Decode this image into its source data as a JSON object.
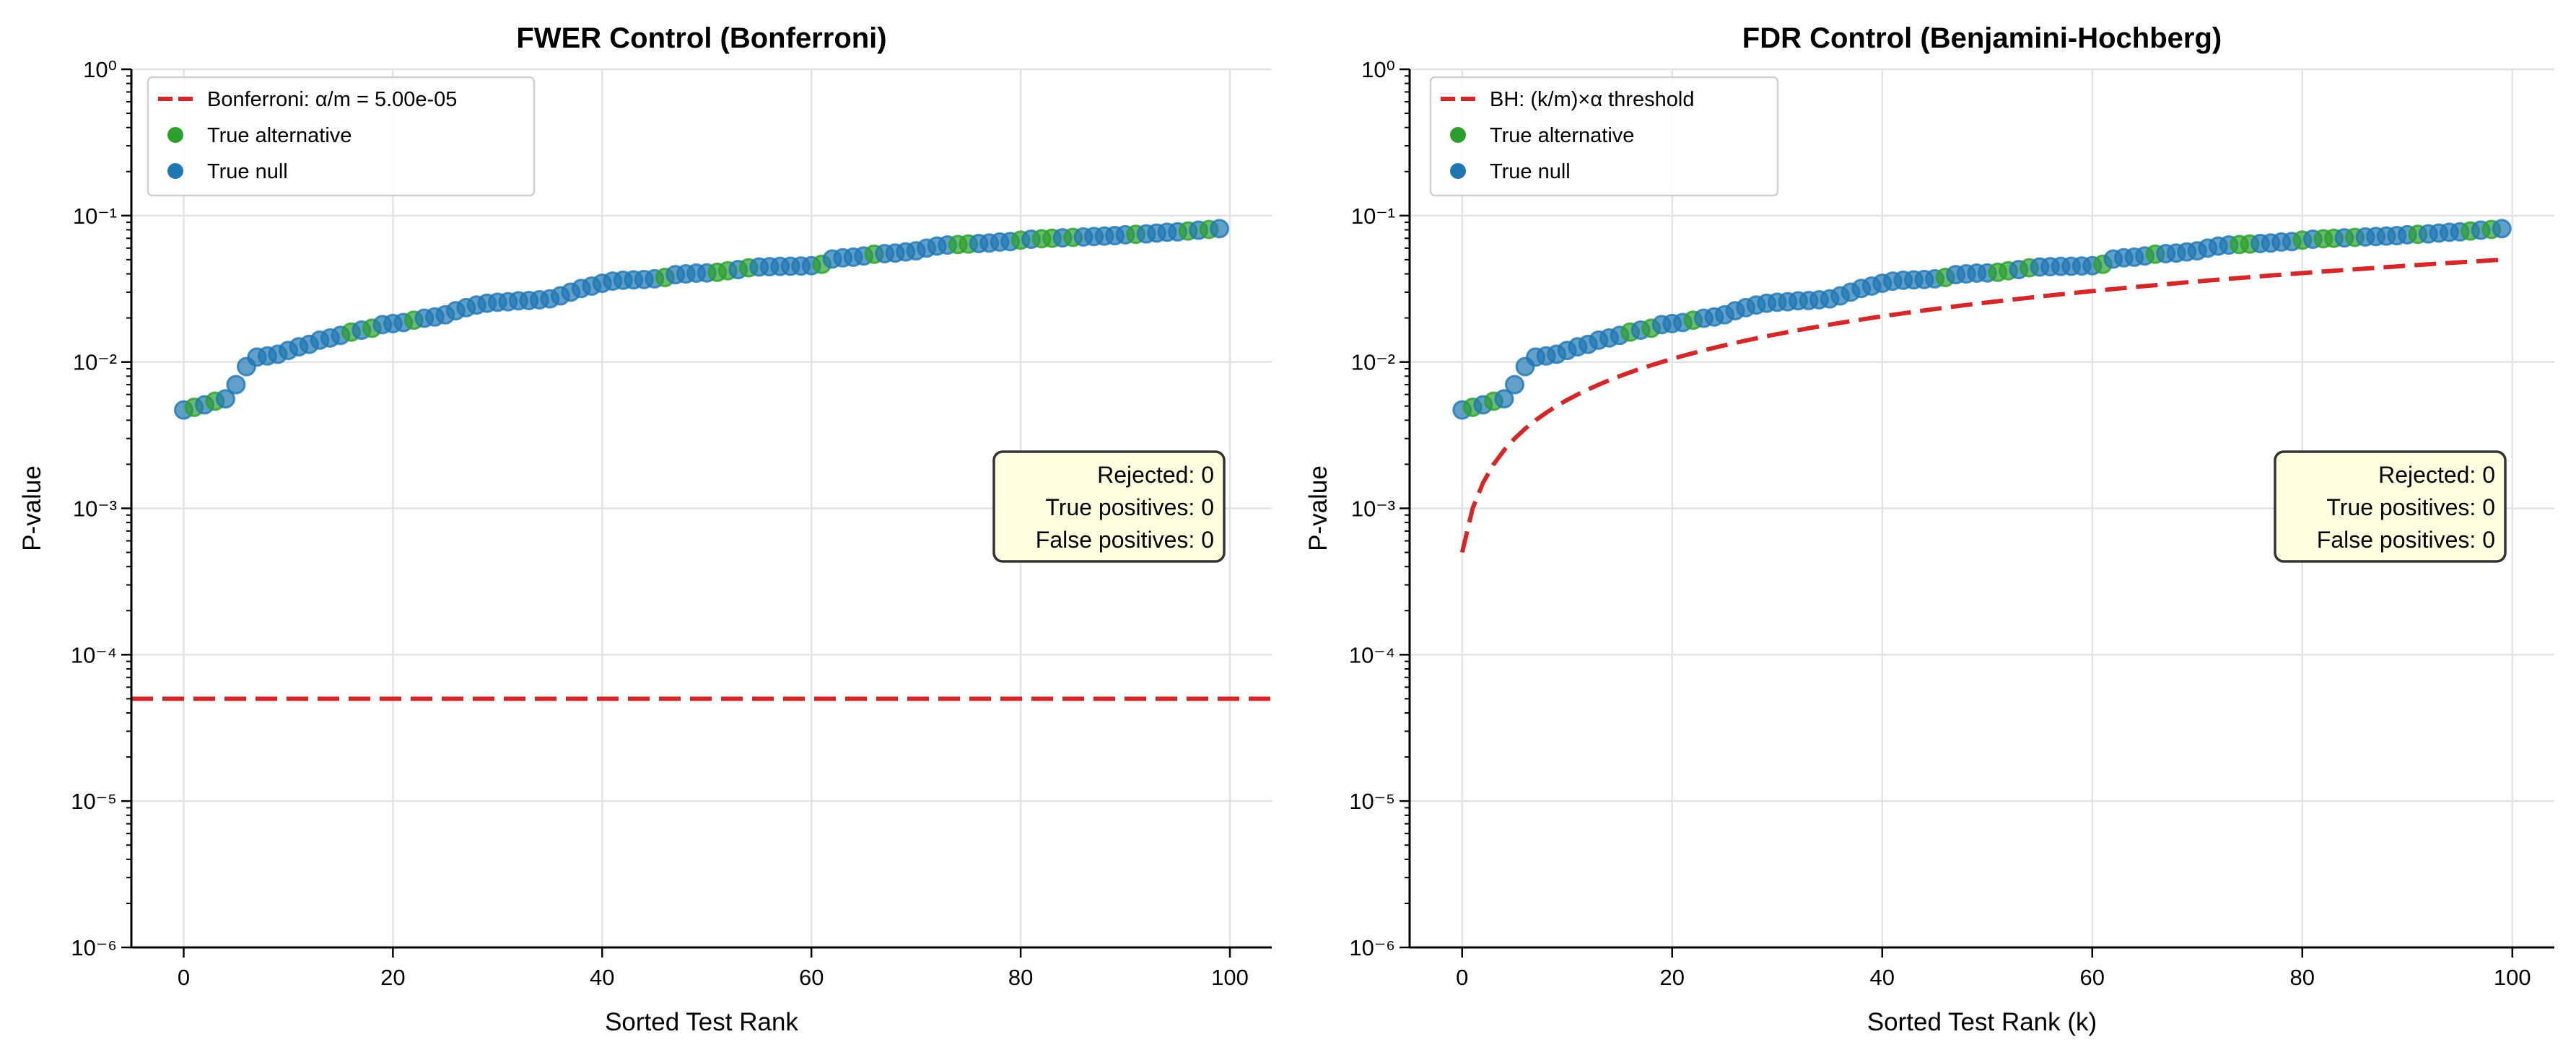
{
  "chart_data": {
    "type": "scatter",
    "m": 100,
    "alpha": 0.05,
    "ranks_start": 0,
    "p_values": [
      0.0047,
      0.0049,
      0.0051,
      0.0054,
      0.0056,
      0.007,
      0.0093,
      0.0108,
      0.011,
      0.0113,
      0.012,
      0.0127,
      0.0132,
      0.0141,
      0.0146,
      0.0152,
      0.016,
      0.0165,
      0.017,
      0.018,
      0.0183,
      0.0186,
      0.0193,
      0.0199,
      0.0203,
      0.021,
      0.0224,
      0.0235,
      0.0245,
      0.0252,
      0.0256,
      0.0258,
      0.0262,
      0.0263,
      0.0266,
      0.027,
      0.0283,
      0.03,
      0.0318,
      0.033,
      0.0345,
      0.0357,
      0.0362,
      0.0364,
      0.0366,
      0.037,
      0.0378,
      0.0395,
      0.04,
      0.0405,
      0.0406,
      0.041,
      0.042,
      0.0428,
      0.044,
      0.0446,
      0.0448,
      0.045,
      0.0451,
      0.0453,
      0.0455,
      0.0465,
      0.0505,
      0.0515,
      0.052,
      0.053,
      0.0545,
      0.055,
      0.0555,
      0.0565,
      0.0575,
      0.06,
      0.062,
      0.063,
      0.0635,
      0.064,
      0.0645,
      0.065,
      0.066,
      0.0665,
      0.068,
      0.069,
      0.0695,
      0.07,
      0.0705,
      0.071,
      0.0715,
      0.072,
      0.0725,
      0.073,
      0.074,
      0.0745,
      0.075,
      0.076,
      0.077,
      0.0775,
      0.0785,
      0.0795,
      0.0805,
      0.0815
    ],
    "true_alternative_ranks": [
      1,
      3,
      16,
      18,
      22,
      46,
      51,
      52,
      54,
      61,
      66,
      74,
      75,
      80,
      82,
      83,
      85,
      91,
      96,
      98
    ],
    "colors": {
      "true_alternative": "#2ca02c",
      "true_null": "#1f77b4",
      "threshold": "#d62728",
      "box_fill": "#ffffe0"
    },
    "ylim": [
      1e-06,
      1
    ],
    "yscale": "log",
    "xlim": [
      -5,
      104
    ],
    "x_ticks": [
      "0",
      "20",
      "40",
      "60",
      "80",
      "100"
    ],
    "y_ticks": [
      "10⁰",
      "10⁻¹",
      "10⁻²",
      "10⁻³",
      "10⁻⁴",
      "10⁻⁵",
      "10⁻⁶"
    ],
    "grid": true,
    "legend_placement": "upper-left",
    "panels": [
      {
        "title": "FWER Control (Bonferroni)",
        "xlabel": "Sorted Test Rank",
        "ylabel": "P-value",
        "threshold_type": "constant",
        "threshold_value": 5e-05,
        "legend": [
          "Bonferroni: α/m = 5.00e-05",
          "True alternative",
          "True null"
        ],
        "stats": [
          "Rejected: 0",
          "True positives: 0",
          "False positives: 0"
        ]
      },
      {
        "title": "FDR Control (Benjamini-Hochberg)",
        "xlabel": "Sorted Test Rank (k)",
        "ylabel": "P-value",
        "threshold_type": "bh",
        "legend": [
          "BH: (k/m)×α threshold",
          "True alternative",
          "True null"
        ],
        "stats": [
          "Rejected: 0",
          "True positives: 0",
          "False positives: 0"
        ]
      }
    ]
  }
}
